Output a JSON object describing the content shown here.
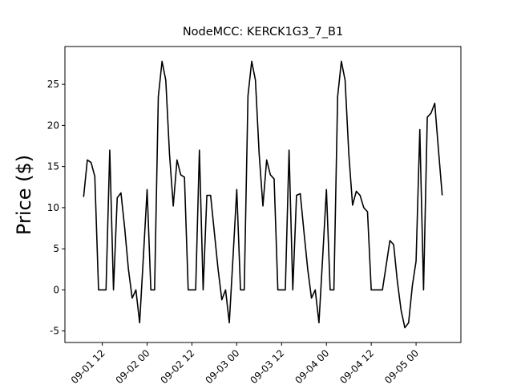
{
  "chart_data": {
    "type": "line",
    "title": "NodeMCC: KERCK1G3_7_B1",
    "y_label": "Price ($)",
    "x": [
      "09-01 07",
      "09-01 08",
      "09-01 09",
      "09-01 10",
      "09-01 11",
      "09-01 12",
      "09-01 13",
      "09-01 14",
      "09-01 15",
      "09-01 16",
      "09-01 17",
      "09-01 18",
      "09-01 19",
      "09-01 20",
      "09-01 21",
      "09-01 22",
      "09-01 23",
      "09-02 00",
      "09-02 01",
      "09-02 02",
      "09-02 03",
      "09-02 04",
      "09-02 05",
      "09-02 06",
      "09-02 07",
      "09-02 08",
      "09-02 09",
      "09-02 10",
      "09-02 11",
      "09-02 12",
      "09-02 13",
      "09-02 14",
      "09-02 15",
      "09-02 16",
      "09-02 17",
      "09-02 18",
      "09-02 19",
      "09-02 20",
      "09-02 21",
      "09-02 22",
      "09-02 23",
      "09-03 00",
      "09-03 01",
      "09-03 02",
      "09-03 03",
      "09-03 04",
      "09-03 05",
      "09-03 06",
      "09-03 07",
      "09-03 08",
      "09-03 09",
      "09-03 10",
      "09-03 11",
      "09-03 12",
      "09-03 13",
      "09-03 14",
      "09-03 15",
      "09-03 16",
      "09-03 17",
      "09-03 18",
      "09-03 19",
      "09-03 20",
      "09-03 21",
      "09-03 22",
      "09-03 23",
      "09-04 00",
      "09-04 01",
      "09-04 02",
      "09-04 03",
      "09-04 04",
      "09-04 05",
      "09-04 06",
      "09-04 07",
      "09-04 08",
      "09-04 09",
      "09-04 10",
      "09-04 11",
      "09-04 12",
      "09-04 13",
      "09-04 14",
      "09-04 15",
      "09-04 16",
      "09-04 17",
      "09-04 18",
      "09-04 19",
      "09-04 20",
      "09-04 21",
      "09-04 22",
      "09-04 23",
      "09-05 00",
      "09-05 01",
      "09-05 02",
      "09-05 03",
      "09-05 04",
      "09-05 05",
      "09-05 06",
      "09-05 07"
    ],
    "series": [
      {
        "color": "#000000",
        "values": [
          11.3,
          15.8,
          15.5,
          13.8,
          0,
          0,
          0,
          17,
          0,
          11.2,
          11.8,
          7.5,
          2.5,
          -1,
          0,
          -4,
          4,
          12.2,
          0,
          0,
          23.5,
          27.8,
          25.5,
          16.5,
          10.2,
          15.8,
          14,
          13.7,
          0,
          0,
          0,
          17,
          0,
          11.5,
          11.5,
          7,
          2.5,
          -1.2,
          0,
          -4,
          4,
          12.2,
          0,
          0,
          23.6,
          27.8,
          25.5,
          16.5,
          10.2,
          15.8,
          14,
          13.5,
          0,
          0,
          0,
          17,
          0,
          11.5,
          11.7,
          7,
          2.5,
          -1,
          0,
          -4,
          4,
          12.2,
          0,
          0,
          23.5,
          27.8,
          25.5,
          16.5,
          10.3,
          12,
          11.5,
          10,
          9.5,
          0,
          0,
          0,
          0,
          3,
          6,
          5.5,
          1,
          -2.5,
          -4.6,
          -4,
          0.5,
          3.5,
          19.5,
          0,
          21,
          21.5,
          22.7,
          17,
          11.5
        ]
      }
    ],
    "xlim": [
      "09-01 02",
      "09-05 12"
    ],
    "xticks": [
      "09-01 12",
      "09-02 00",
      "09-02 12",
      "09-03 00",
      "09-03 12",
      "09-04 00",
      "09-04 12",
      "09-05 00"
    ],
    "ylim": [
      -6.4,
      29.6
    ],
    "yticks": [
      -5,
      0,
      5,
      10,
      15,
      20,
      25
    ]
  }
}
